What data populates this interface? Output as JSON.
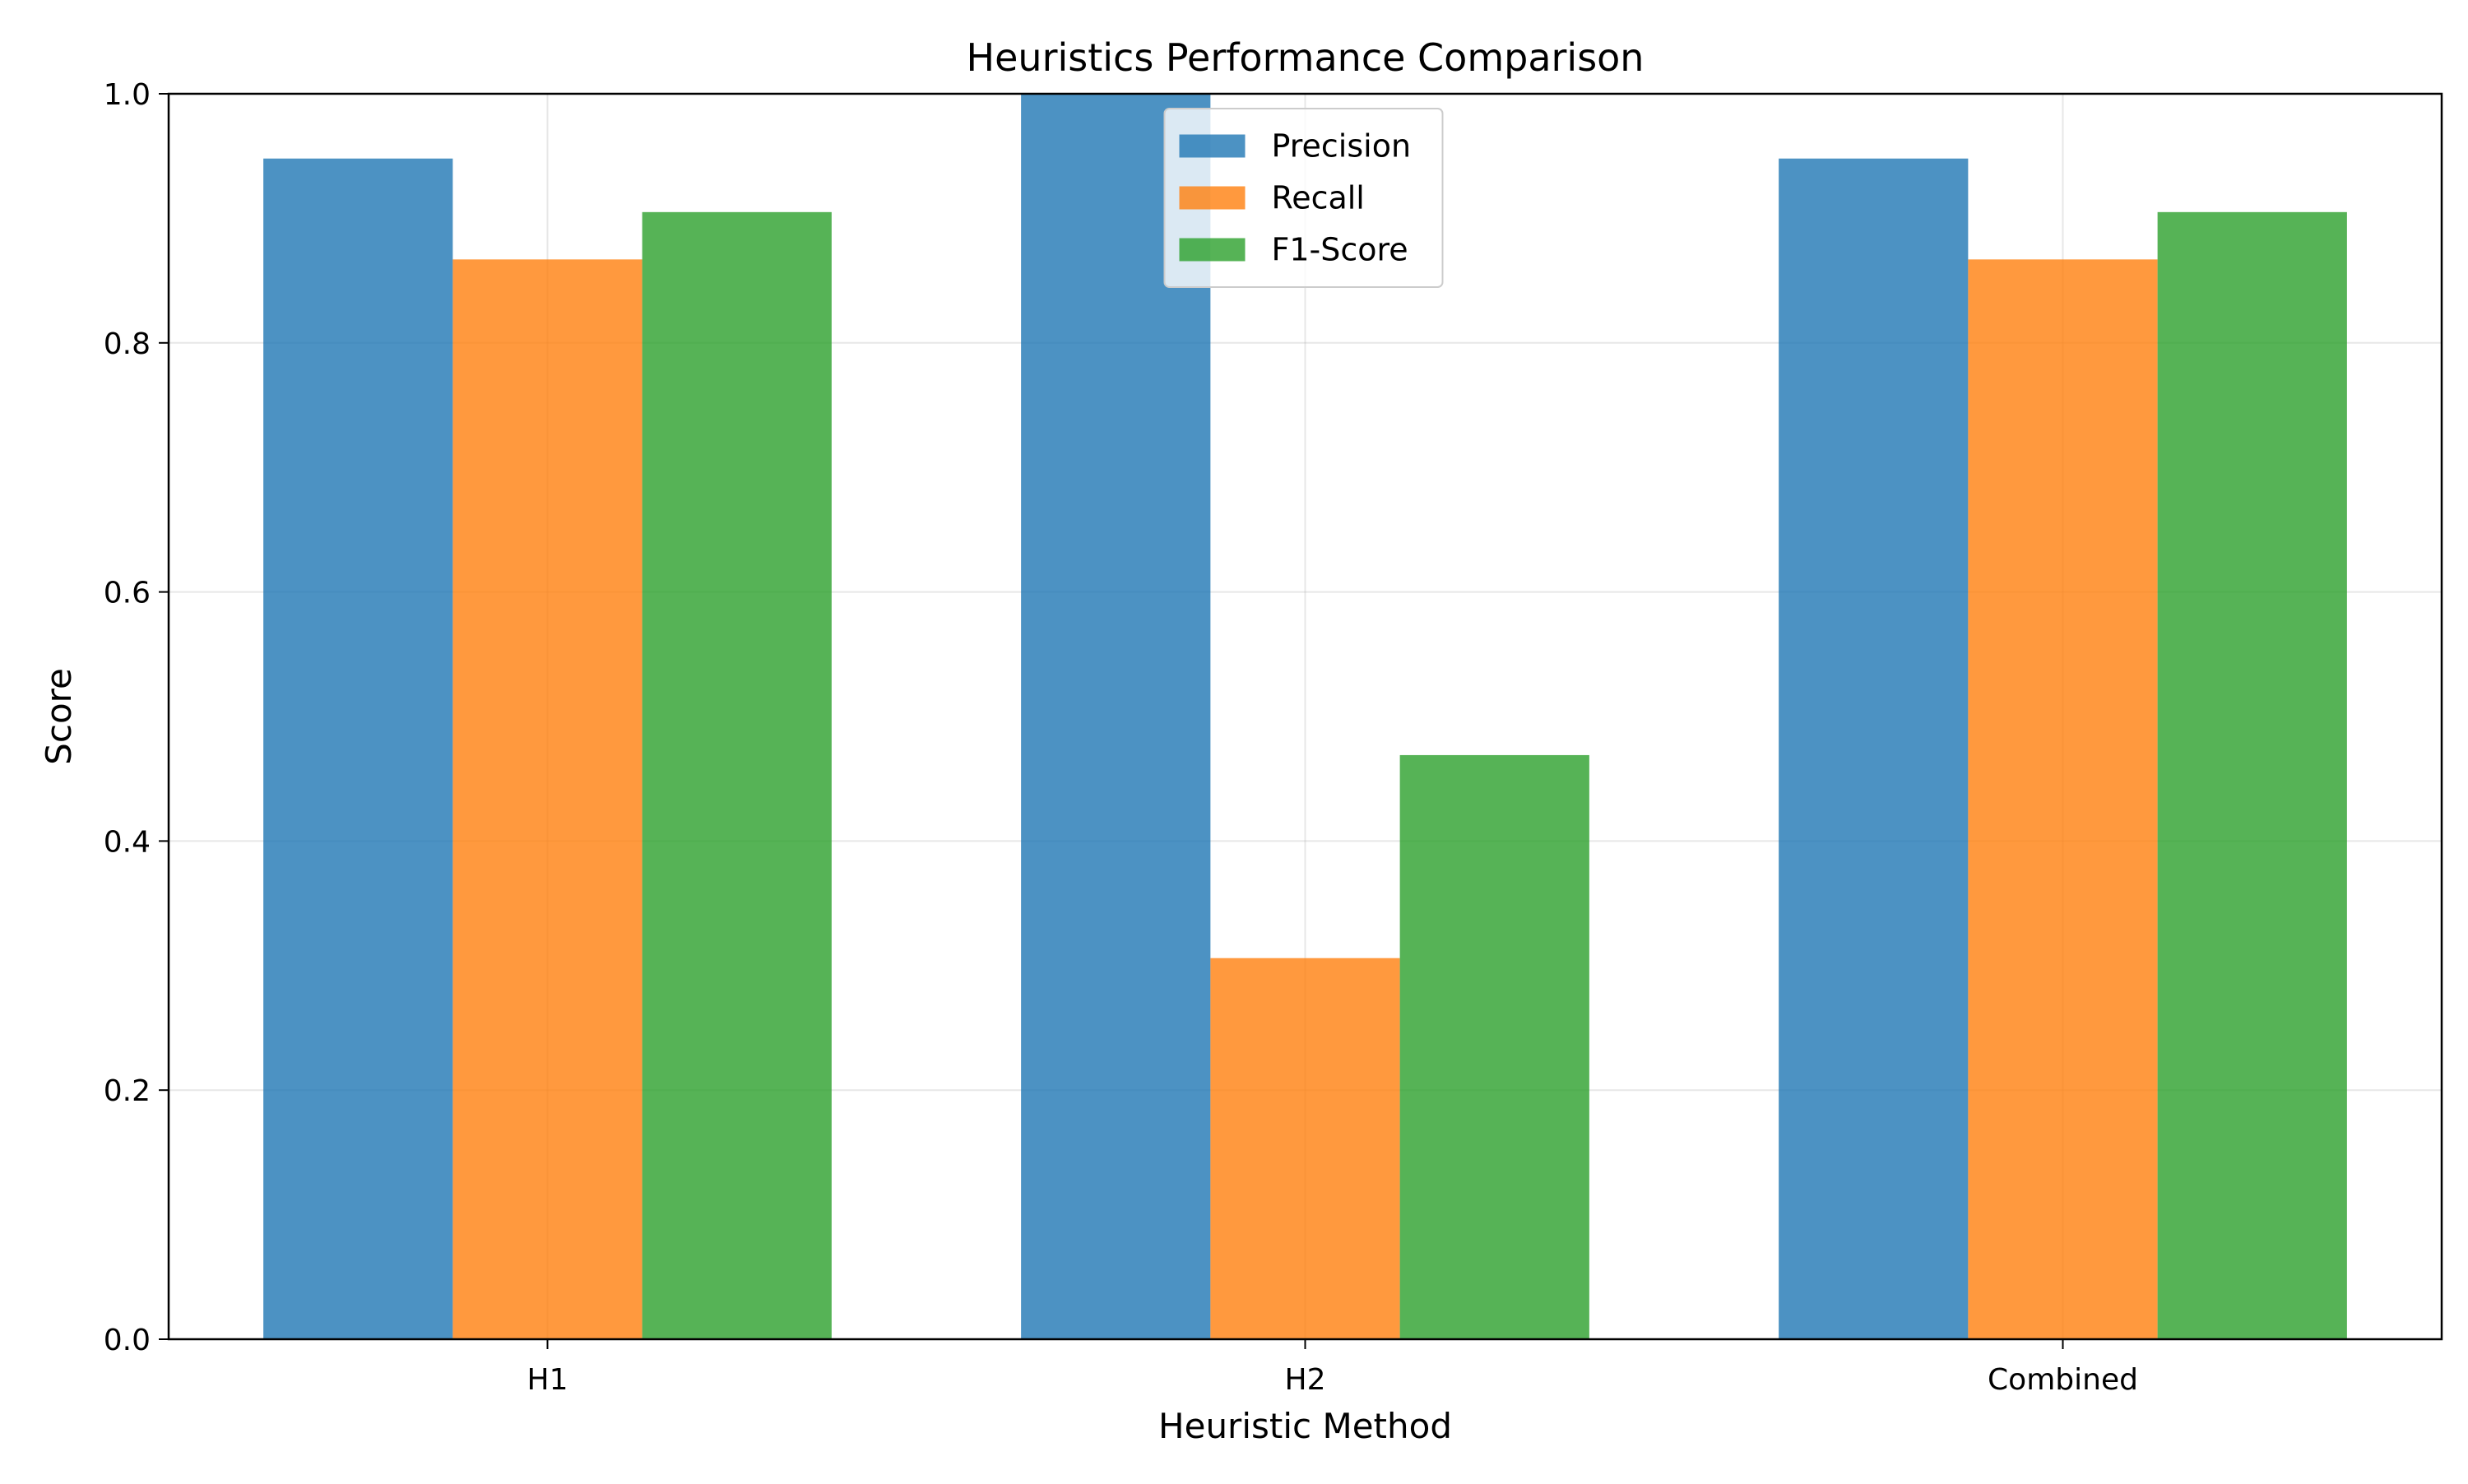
{
  "chart_data": {
    "type": "bar",
    "title": "Heuristics Performance Comparison",
    "xlabel": "Heuristic Method",
    "ylabel": "Score",
    "categories": [
      "H1",
      "H2",
      "Combined"
    ],
    "series": [
      {
        "name": "Precision",
        "color": "#1f77b4",
        "values": [
          0.948,
          1.0,
          0.948
        ]
      },
      {
        "name": "Recall",
        "color": "#ff7f0e",
        "values": [
          0.867,
          0.306,
          0.867
        ]
      },
      {
        "name": "F1-Score",
        "color": "#2ca02c",
        "values": [
          0.905,
          0.469,
          0.905
        ]
      }
    ],
    "ylim": [
      0,
      1.0
    ],
    "yticks": [
      "0.0",
      "0.2",
      "0.4",
      "0.6",
      "0.8",
      "1.0"
    ],
    "bar_opacity": 0.8,
    "grid": true,
    "legend_position": "upper center"
  }
}
